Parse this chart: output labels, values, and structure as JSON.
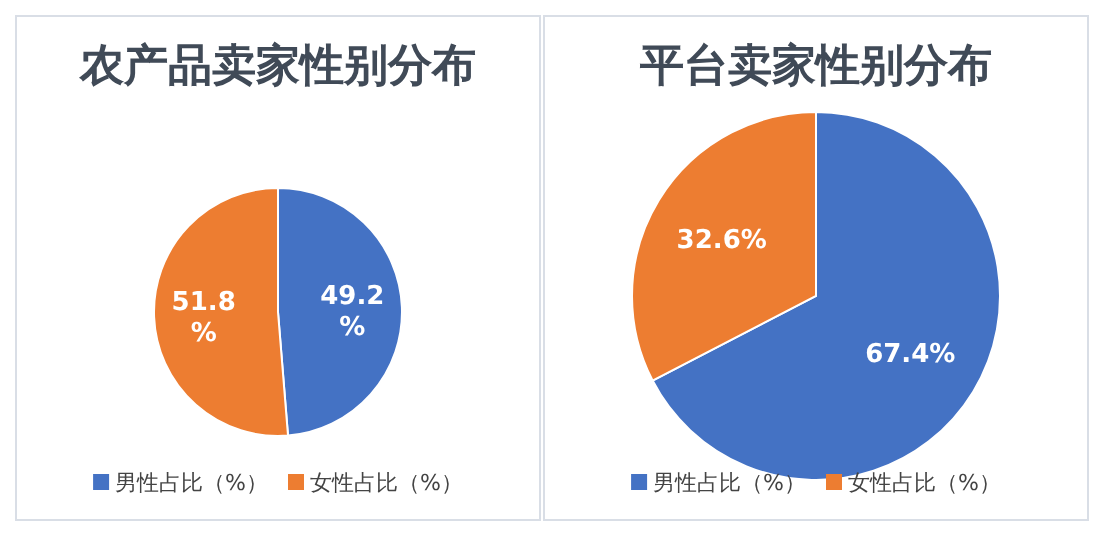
{
  "chart_data": [
    {
      "type": "pie",
      "title": "农产品卖家性别分布",
      "categories": [
        "男性占比（%）",
        "女性占比（%）"
      ],
      "values": [
        49.2,
        51.8
      ],
      "colors": [
        "#4472c4",
        "#ed7d31"
      ],
      "value_labels": [
        "49.2%",
        "51.8%"
      ],
      "legend": "bottom"
    },
    {
      "type": "pie",
      "title": "平台卖家性别分布",
      "categories": [
        "男性占比（%）",
        "女性占比（%）"
      ],
      "values": [
        67.4,
        32.6
      ],
      "colors": [
        "#4472c4",
        "#ed7d31"
      ],
      "value_labels": [
        "67.4%",
        "32.6%"
      ],
      "legend": "bottom"
    }
  ]
}
